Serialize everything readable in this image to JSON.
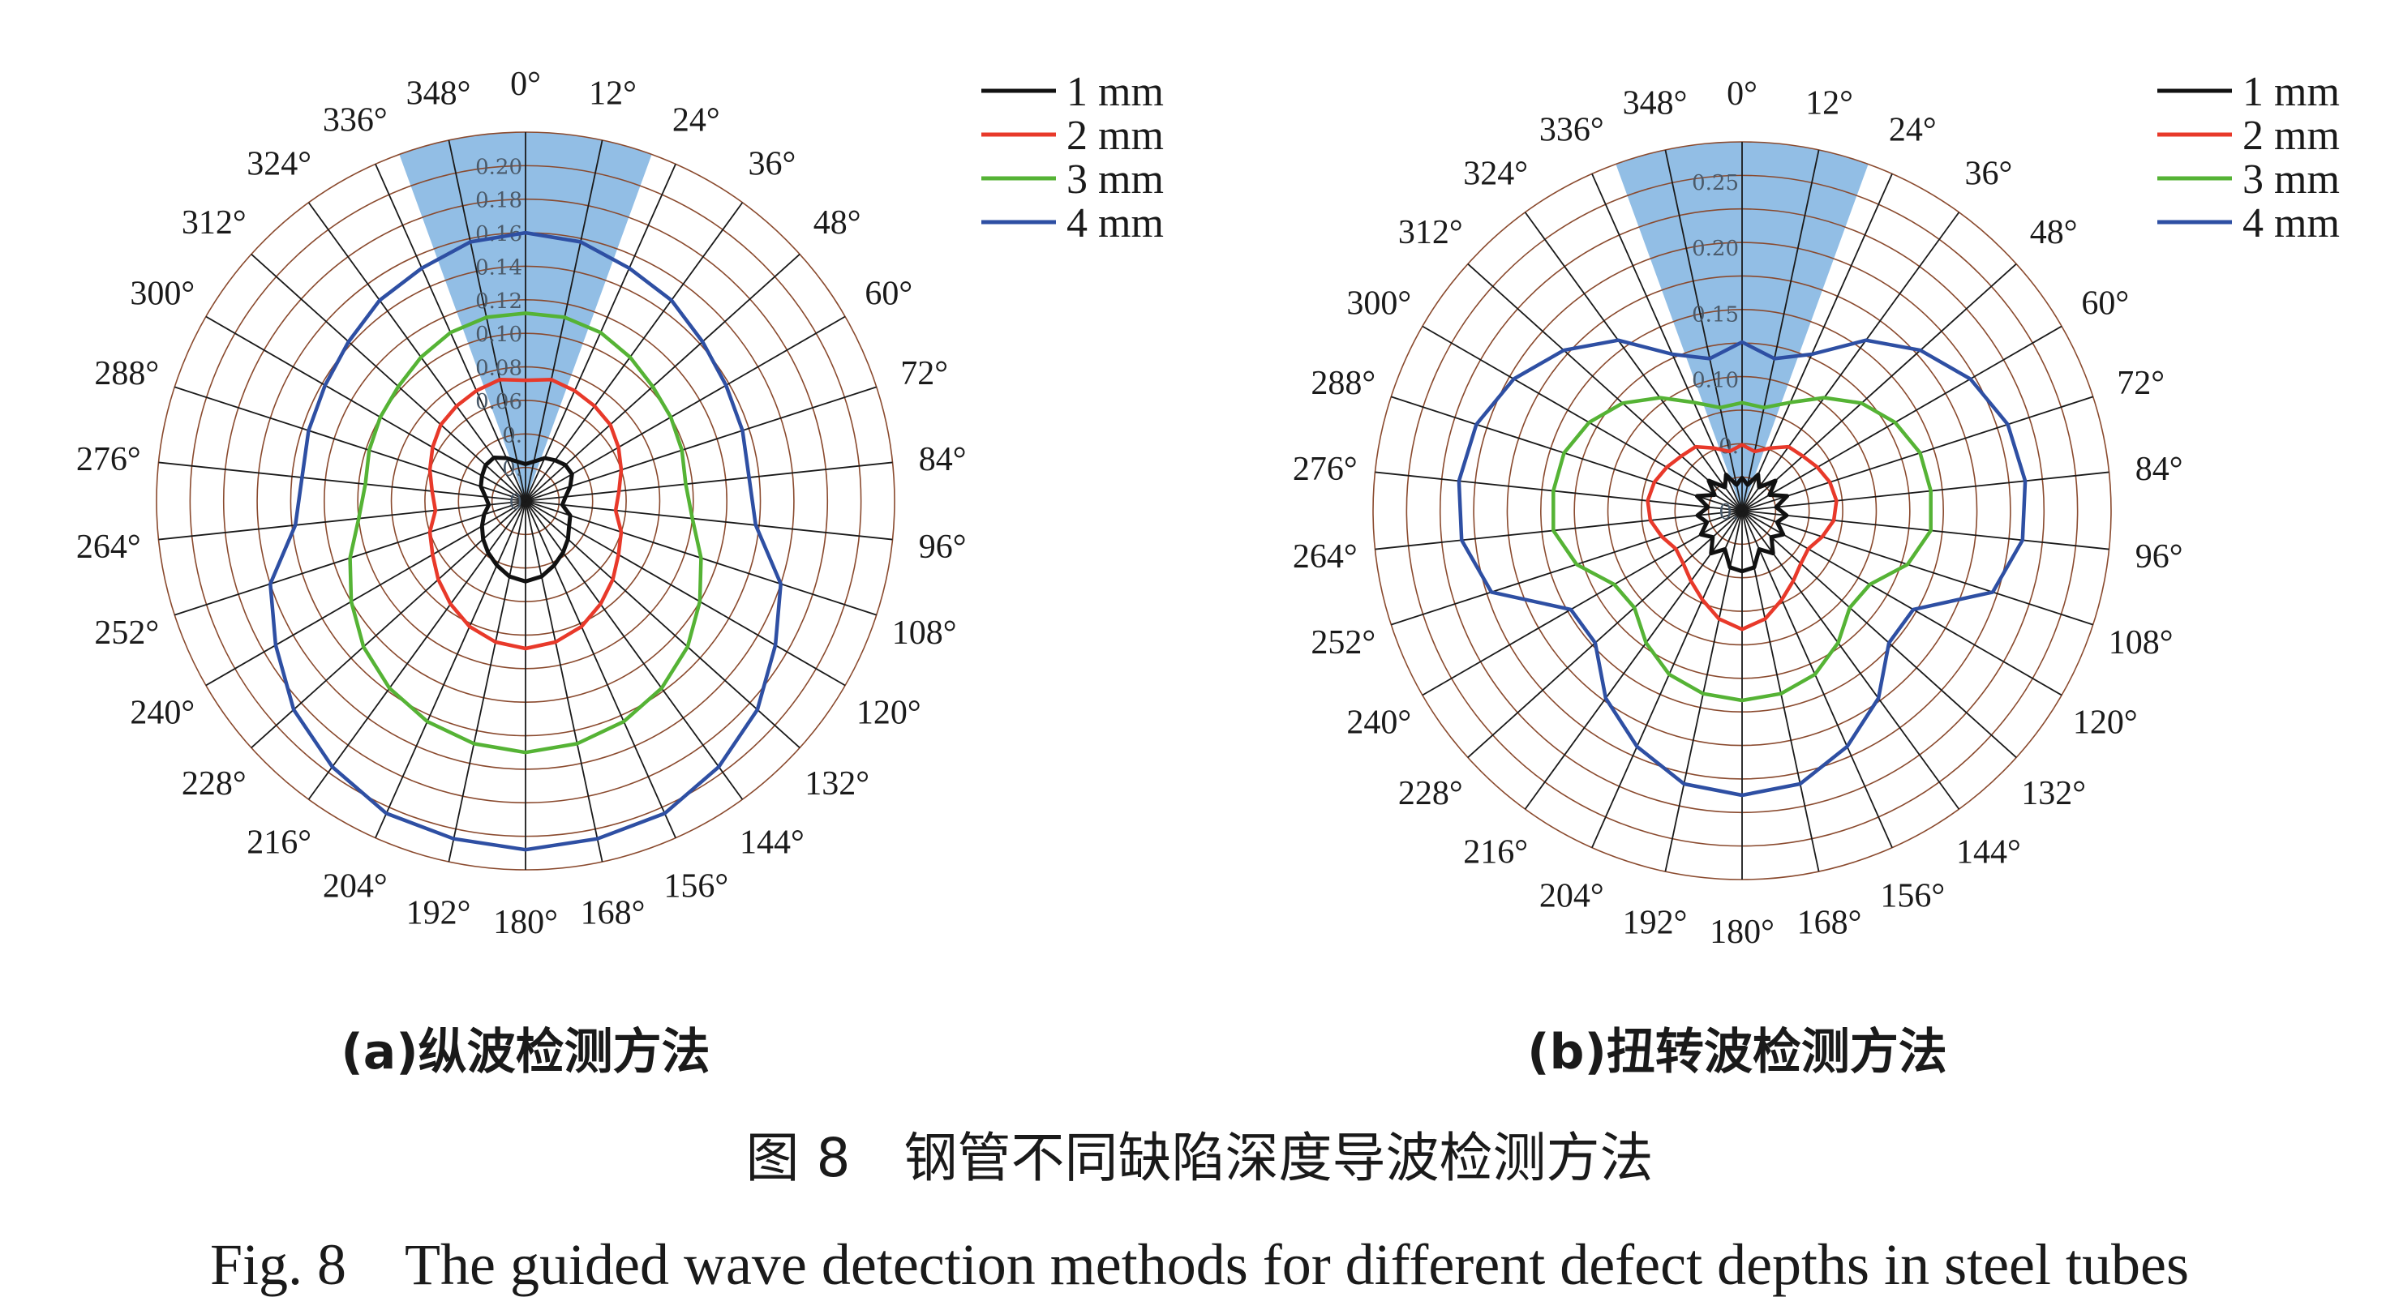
{
  "figure": {
    "caption_zh": "图 8　钢管不同缺陷深度导波检测方法",
    "caption_en": "Fig. 8　The guided wave detection methods for different defect depths in steel tubes"
  },
  "colors": {
    "1 mm": "#111111",
    "2 mm": "#e8392a",
    "3 mm": "#55b335",
    "4 mm": "#2e4fa3",
    "sector": "#7fb3e0",
    "grid": "#8a4a2e"
  },
  "chart_data": [
    {
      "type": "polar-line",
      "subtitle": "(a)纵波检测方法",
      "angles_deg": [
        0,
        12,
        24,
        36,
        48,
        60,
        72,
        84,
        96,
        108,
        120,
        132,
        144,
        156,
        168,
        180,
        192,
        204,
        216,
        228,
        240,
        252,
        264,
        276,
        288,
        300,
        312,
        324,
        336,
        348
      ],
      "angle_labels": [
        "0°",
        "12°",
        "24°",
        "36°",
        "48°",
        "60°",
        "72°",
        "84°",
        "96°",
        "108°",
        "120°",
        "132°",
        "144°",
        "156°",
        "168°",
        "180°",
        "192°",
        "204°",
        "216°",
        "228°",
        "240°",
        "252°",
        "264°",
        "276°",
        "288°",
        "300°",
        "312°",
        "324°",
        "336°",
        "348°"
      ],
      "rlim": [
        0,
        0.22
      ],
      "r_ticks": [
        0,
        0.02,
        0.04,
        0.06,
        0.08,
        0.1,
        0.12,
        0.14,
        0.16,
        0.18,
        0.2
      ],
      "r_tick_labels": [
        "0",
        "0.",
        "0.",
        "0.06",
        "0.08",
        "0.10",
        "0.12",
        "0.14",
        "0.16",
        "0.18",
        "0.20"
      ],
      "sector_deg": [
        -20,
        20
      ],
      "sector_r": 0.22,
      "series": [
        {
          "name": "1 mm",
          "values": [
            0.022,
            0.024,
            0.028,
            0.03,
            0.032,
            0.032,
            0.028,
            0.024,
            0.022,
            0.028,
            0.03,
            0.034,
            0.038,
            0.042,
            0.046,
            0.048,
            0.046,
            0.042,
            0.038,
            0.034,
            0.03,
            0.026,
            0.022,
            0.024,
            0.028,
            0.03,
            0.032,
            0.032,
            0.028,
            0.024
          ]
        },
        {
          "name": "2 mm",
          "values": [
            0.072,
            0.074,
            0.072,
            0.07,
            0.068,
            0.064,
            0.06,
            0.056,
            0.054,
            0.06,
            0.064,
            0.07,
            0.076,
            0.082,
            0.086,
            0.088,
            0.086,
            0.082,
            0.076,
            0.07,
            0.064,
            0.06,
            0.054,
            0.056,
            0.06,
            0.064,
            0.068,
            0.07,
            0.072,
            0.074
          ]
        },
        {
          "name": "3 mm",
          "values": [
            0.112,
            0.112,
            0.11,
            0.106,
            0.102,
            0.1,
            0.098,
            0.096,
            0.1,
            0.11,
            0.12,
            0.13,
            0.138,
            0.144,
            0.148,
            0.15,
            0.148,
            0.144,
            0.138,
            0.13,
            0.12,
            0.11,
            0.1,
            0.096,
            0.098,
            0.1,
            0.102,
            0.106,
            0.11,
            0.112
          ]
        },
        {
          "name": "4 mm",
          "values": [
            0.16,
            0.158,
            0.152,
            0.148,
            0.142,
            0.138,
            0.136,
            0.134,
            0.138,
            0.16,
            0.172,
            0.186,
            0.196,
            0.204,
            0.206,
            0.208,
            0.206,
            0.204,
            0.196,
            0.186,
            0.172,
            0.16,
            0.138,
            0.134,
            0.136,
            0.138,
            0.142,
            0.148,
            0.152,
            0.158
          ]
        }
      ]
    },
    {
      "type": "polar-line",
      "subtitle": "(b)扭转波检测方法",
      "angles_deg": [
        0,
        12,
        24,
        36,
        48,
        60,
        72,
        84,
        96,
        108,
        120,
        132,
        144,
        156,
        168,
        180,
        192,
        204,
        216,
        228,
        240,
        252,
        264,
        276,
        288,
        300,
        312,
        324,
        336,
        348
      ],
      "angle_labels": [
        "0°",
        "12°",
        "24°",
        "36°",
        "48°",
        "60°",
        "72°",
        "84°",
        "96°",
        "108°",
        "120°",
        "132°",
        "144°",
        "156°",
        "168°",
        "180°",
        "192°",
        "204°",
        "216°",
        "228°",
        "240°",
        "252°",
        "264°",
        "276°",
        "288°",
        "300°",
        "312°",
        "324°",
        "336°",
        "348°"
      ],
      "rlim": [
        0,
        0.28
      ],
      "r_ticks": [
        0,
        0.05,
        0.1,
        0.15,
        0.2,
        0.25
      ],
      "r_tick_labels": [
        "0.",
        "0.",
        "0.10",
        "0.15",
        "0.20",
        "0.25"
      ],
      "sector_deg": [
        -20,
        20
      ],
      "sector_r": 0.28,
      "series": [
        {
          "name": "1 mm",
          "values": [
            0.025,
            0.02,
            0.03,
            0.022,
            0.034,
            0.024,
            0.036,
            0.026,
            0.034,
            0.028,
            0.036,
            0.03,
            0.04,
            0.032,
            0.044,
            0.046,
            0.044,
            0.032,
            0.04,
            0.03,
            0.036,
            0.028,
            0.034,
            0.026,
            0.036,
            0.024,
            0.034,
            0.022,
            0.03,
            0.02
          ]
        },
        {
          "name": "2 mm",
          "values": [
            0.05,
            0.046,
            0.052,
            0.06,
            0.062,
            0.066,
            0.07,
            0.072,
            0.07,
            0.064,
            0.058,
            0.06,
            0.066,
            0.074,
            0.084,
            0.09,
            0.084,
            0.074,
            0.066,
            0.06,
            0.058,
            0.064,
            0.07,
            0.072,
            0.07,
            0.066,
            0.062,
            0.06,
            0.052,
            0.046
          ]
        },
        {
          "name": "3 mm",
          "values": [
            0.082,
            0.08,
            0.09,
            0.106,
            0.122,
            0.134,
            0.142,
            0.144,
            0.144,
            0.132,
            0.112,
            0.11,
            0.124,
            0.136,
            0.142,
            0.144,
            0.142,
            0.136,
            0.124,
            0.11,
            0.112,
            0.132,
            0.144,
            0.144,
            0.142,
            0.134,
            0.122,
            0.106,
            0.09,
            0.08
          ]
        },
        {
          "name": "4 mm",
          "values": [
            0.128,
            0.118,
            0.13,
            0.16,
            0.182,
            0.2,
            0.212,
            0.216,
            0.214,
            0.2,
            0.15,
            0.15,
            0.176,
            0.196,
            0.212,
            0.216,
            0.212,
            0.196,
            0.176,
            0.15,
            0.15,
            0.2,
            0.214,
            0.216,
            0.212,
            0.2,
            0.182,
            0.16,
            0.13,
            0.118
          ]
        }
      ]
    }
  ]
}
